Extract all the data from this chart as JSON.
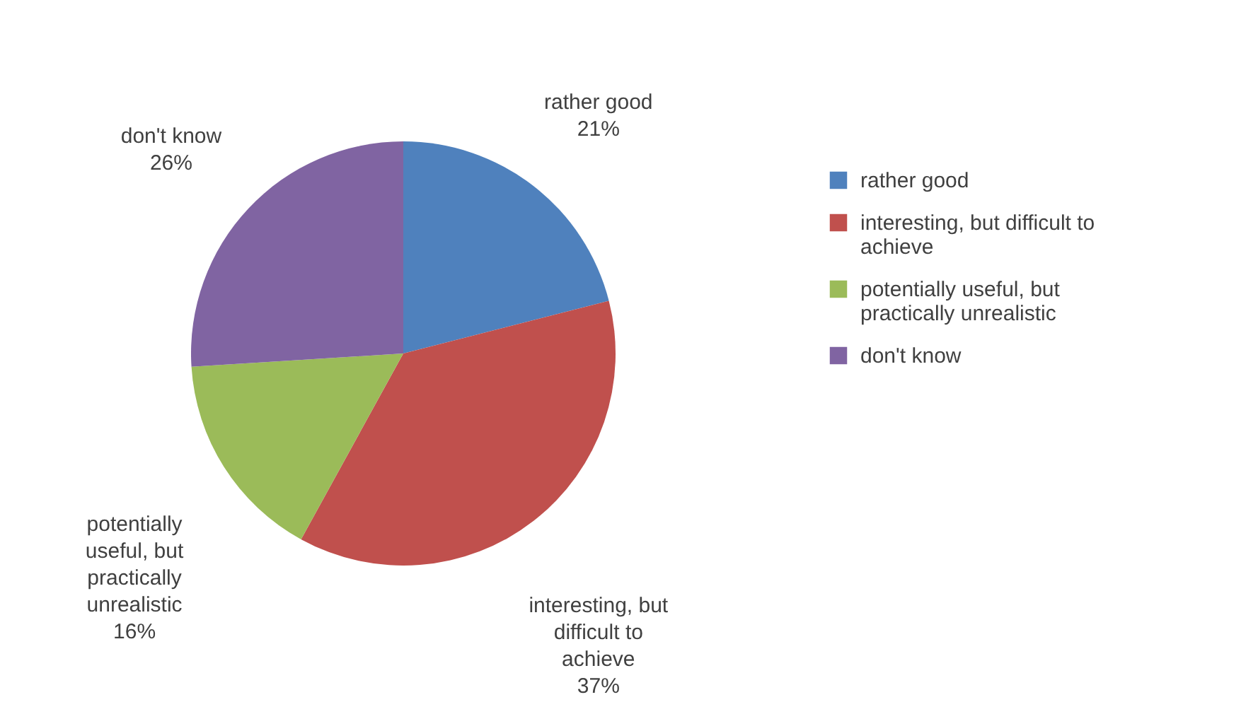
{
  "chart_data": {
    "type": "pie",
    "categories": [
      "rather good",
      "interesting, but difficult to achieve",
      "potentially useful, but practically unrealistic",
      "don't know"
    ],
    "values": [
      21,
      37,
      16,
      26
    ],
    "colors": [
      "#4f81bd",
      "#c0504d",
      "#9bbb59",
      "#8064a2"
    ],
    "value_labels": [
      "21%",
      "37%",
      "16%",
      "26%"
    ],
    "legend": "right"
  }
}
